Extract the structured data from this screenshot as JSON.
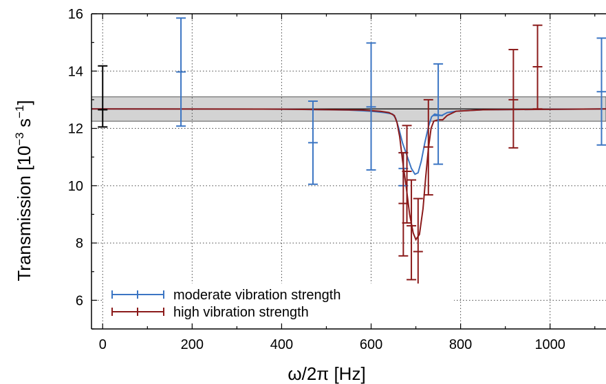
{
  "chart_data": {
    "type": "line",
    "xlabel": "ω/2π [Hz]",
    "ylabel_main": "Transmission [10",
    "ylabel_sup1": "−3",
    "ylabel_unit": " s",
    "ylabel_sup2": "−1",
    "ylabel_end": "]",
    "xlim": [
      -25,
      1125
    ],
    "ylim": [
      5,
      16
    ],
    "xticks": [
      0,
      200,
      400,
      600,
      800,
      1000
    ],
    "yticks": [
      6,
      8,
      10,
      12,
      14,
      16
    ],
    "grid": true,
    "legend_position": "bottom-left",
    "reference_band": {
      "center": 12.68,
      "lower": 12.25,
      "upper": 13.1,
      "color": "#d3d3d3",
      "point": {
        "x": 0,
        "y": 12.65,
        "low": 12.05,
        "high": 14.18,
        "color": "#000000"
      }
    },
    "series": [
      {
        "name": "moderate vibration strength",
        "color": "#3b75c3",
        "points": [
          {
            "x": 175,
            "y": 13.97,
            "low": 12.08,
            "high": 15.85
          },
          {
            "x": 470,
            "y": 11.5,
            "low": 10.05,
            "high": 12.95
          },
          {
            "x": 600,
            "y": 12.75,
            "low": 10.55,
            "high": 14.98
          },
          {
            "x": 672,
            "y": 10.6,
            "low": 10.0,
            "high": 11.15
          },
          {
            "x": 750,
            "y": 12.45,
            "low": 10.75,
            "high": 14.25
          },
          {
            "x": 1115,
            "y": 13.28,
            "low": 11.42,
            "high": 15.15
          }
        ],
        "curve": [
          [
            -25,
            12.68
          ],
          [
            400,
            12.67
          ],
          [
            550,
            12.64
          ],
          [
            600,
            12.6
          ],
          [
            630,
            12.55
          ],
          [
            648,
            12.5
          ],
          [
            655,
            12.35
          ],
          [
            662,
            12.0
          ],
          [
            670,
            11.5
          ],
          [
            680,
            11.05
          ],
          [
            690,
            10.6
          ],
          [
            698,
            10.4
          ],
          [
            705,
            10.45
          ],
          [
            712,
            10.85
          ],
          [
            720,
            11.5
          ],
          [
            728,
            12.05
          ],
          [
            735,
            12.4
          ],
          [
            742,
            12.5
          ],
          [
            750,
            12.47
          ],
          [
            758,
            12.45
          ],
          [
            770,
            12.55
          ],
          [
            790,
            12.6
          ],
          [
            850,
            12.65
          ],
          [
            1125,
            12.68
          ]
        ]
      },
      {
        "name": "high vibration strength",
        "color": "#8b1a1a",
        "points": [
          {
            "x": 672,
            "y": 9.38,
            "low": 7.55,
            "high": 11.15
          },
          {
            "x": 680,
            "y": 10.5,
            "low": 8.7,
            "high": 12.1
          },
          {
            "x": 690,
            "y": 8.6,
            "low": 6.72,
            "high": 10.2
          },
          {
            "x": 705,
            "y": 7.7,
            "low": 5.87,
            "high": 9.55
          },
          {
            "x": 728,
            "y": 11.35,
            "low": 9.68,
            "high": 13.0
          },
          {
            "x": 918,
            "y": 13.0,
            "low": 11.32,
            "high": 14.75
          },
          {
            "x": 972,
            "y": 14.15,
            "low": 12.68,
            "high": 15.6
          }
        ],
        "curve": [
          [
            -25,
            12.68
          ],
          [
            400,
            12.67
          ],
          [
            580,
            12.64
          ],
          [
            620,
            12.6
          ],
          [
            640,
            12.55
          ],
          [
            652,
            12.45
          ],
          [
            658,
            12.2
          ],
          [
            664,
            11.7
          ],
          [
            670,
            10.9
          ],
          [
            678,
            10.0
          ],
          [
            686,
            9.0
          ],
          [
            694,
            8.35
          ],
          [
            700,
            8.12
          ],
          [
            708,
            8.3
          ],
          [
            716,
            9.2
          ],
          [
            722,
            10.3
          ],
          [
            728,
            11.3
          ],
          [
            734,
            12.0
          ],
          [
            740,
            12.25
          ],
          [
            750,
            12.3
          ],
          [
            760,
            12.3
          ],
          [
            770,
            12.45
          ],
          [
            790,
            12.6
          ],
          [
            850,
            12.65
          ],
          [
            1125,
            12.68
          ]
        ]
      }
    ]
  }
}
